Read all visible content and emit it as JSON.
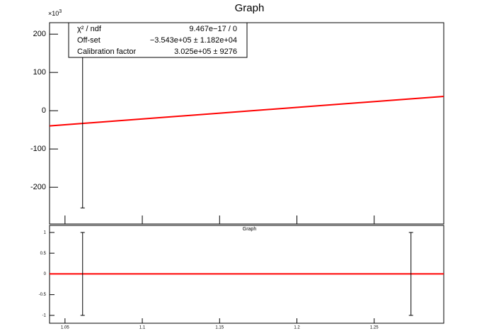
{
  "chart_data": [
    {
      "type": "errorbar",
      "title": "Graph",
      "y_exponent_base": "×10",
      "y_exponent": 3,
      "xlim": [
        1.04,
        1.295
      ],
      "xticks": [
        1.05,
        1.1,
        1.15,
        1.2,
        1.25
      ],
      "ylim": [
        -296,
        230
      ],
      "yticks": [
        -200,
        -100,
        0,
        100,
        200
      ],
      "series": [
        {
          "color": "#000000",
          "x": [
            1.0614
          ],
          "values": [
            -33
          ],
          "err_low": [
            221
          ],
          "err_high": [
            183
          ]
        }
      ],
      "fit": {
        "color": "#ff0000",
        "x": [
          1.04,
          1.295
        ],
        "values": [
          -39.7,
          37.4
        ]
      },
      "stats": {
        "rows": [
          [
            "χ² / ndf",
            "9.467e−17 / 0"
          ],
          [
            "Off-set",
            "−3.543e+05 ± 1.182e+04"
          ],
          [
            "Calibration factor",
            "3.025e+05 ±  9276"
          ]
        ]
      }
    },
    {
      "type": "errorbar",
      "title": "Graph",
      "xlim": [
        1.04,
        1.295
      ],
      "xticks": [
        1.05,
        1.1,
        1.15,
        1.2,
        1.25
      ],
      "ylim": [
        -1.19,
        1.17
      ],
      "yticks": [
        -1,
        -0.5,
        0,
        0.5,
        1
      ],
      "series": [
        {
          "color": "#000000",
          "x": [
            1.0614,
            1.2738
          ],
          "values": [
            0,
            0
          ],
          "err_low": [
            1,
            1
          ],
          "err_high": [
            1,
            1
          ]
        }
      ],
      "fit": {
        "color": "#ff0000",
        "x": [
          1.04,
          1.295
        ],
        "values": [
          0,
          0
        ]
      }
    }
  ]
}
